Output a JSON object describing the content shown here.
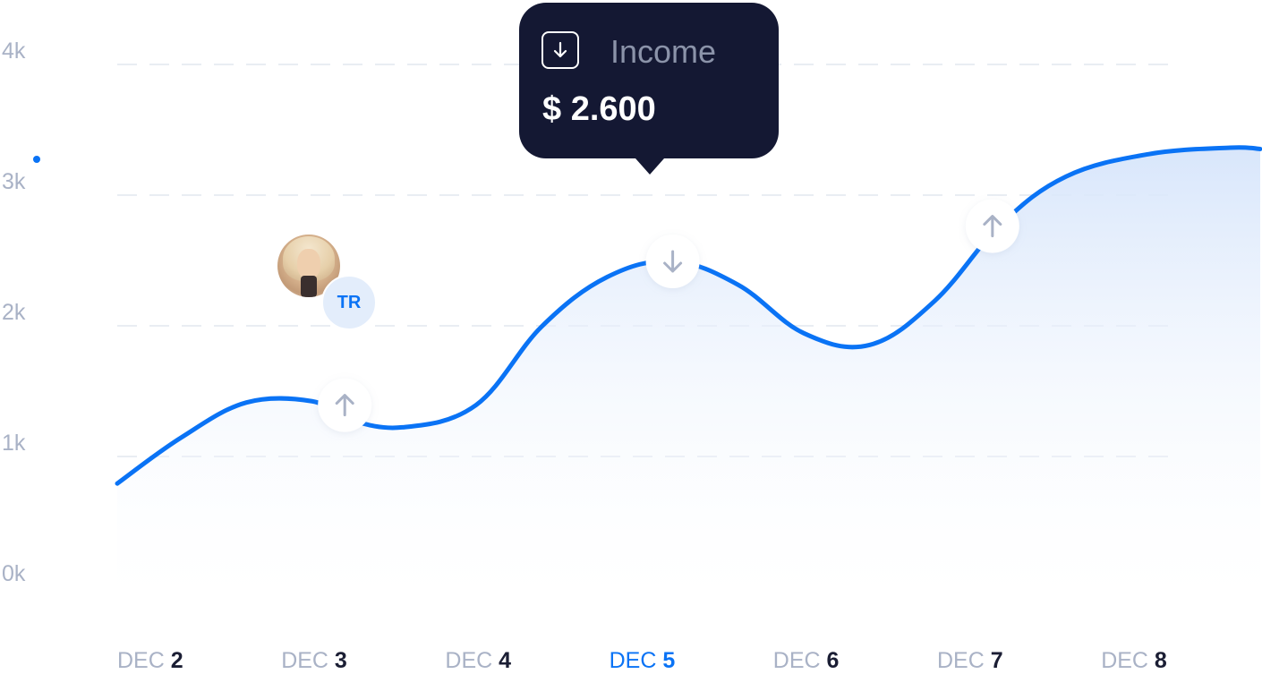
{
  "chart_data": {
    "type": "area",
    "y_ticks": [
      "4k",
      "3k",
      "2k",
      "1k",
      "0k"
    ],
    "ylim": [
      0,
      4000
    ],
    "grid": true,
    "categories": [
      {
        "month": "DEC",
        "day": "2"
      },
      {
        "month": "DEC",
        "day": "3"
      },
      {
        "month": "DEC",
        "day": "4"
      },
      {
        "month": "DEC",
        "day": "5"
      },
      {
        "month": "DEC",
        "day": "6"
      },
      {
        "month": "DEC",
        "day": "7"
      },
      {
        "month": "DEC",
        "day": "8"
      }
    ],
    "selected_index": 3,
    "series": [
      {
        "x": [
          1.6,
          2.0,
          2.4,
          2.8,
          3.0,
          3.35,
          3.8,
          4.2,
          4.6,
          5.0,
          5.4,
          5.8,
          6.2,
          6.6,
          7.0,
          7.4,
          7.9,
          8.4,
          8.8
        ],
        "y": [
          800,
          1150,
          1420,
          1430,
          1300,
          1230,
          1400,
          2000,
          2380,
          2500,
          2320,
          1950,
          1860,
          2200,
          2780,
          3150,
          3320,
          3370,
          3360
        ]
      }
    ],
    "markers": [
      {
        "x": 3.0,
        "y": 1400,
        "direction": "up",
        "icon": "arrow-up-icon"
      },
      {
        "x": 5.0,
        "y": 2500,
        "direction": "down",
        "icon": "arrow-down-icon"
      },
      {
        "x": 6.95,
        "y": 2770,
        "direction": "up",
        "icon": "arrow-up-icon"
      }
    ],
    "tooltip": {
      "label": "Income",
      "value": "$ 2.600",
      "icon": "arrow-down-box-icon"
    },
    "annotation": {
      "initials": "TR"
    },
    "colors": {
      "line": "#0a73f5",
      "area_top": "#dbe8fb",
      "selected": "#0a73f5",
      "tooltip_bg": "#141833",
      "tick": "#a9b2c6"
    }
  }
}
